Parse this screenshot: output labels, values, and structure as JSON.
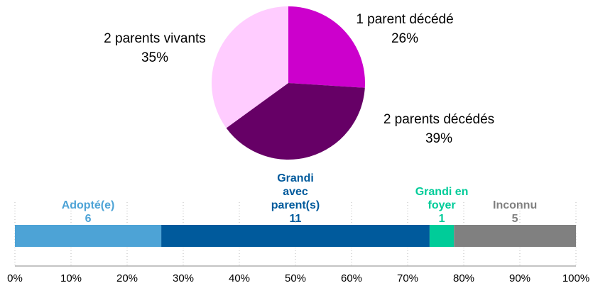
{
  "chart_data": [
    {
      "type": "pie",
      "categories": [
        "1 parent décédé",
        "2 parents décédés",
        "2 parents vivants"
      ],
      "values": [
        26,
        39,
        35
      ],
      "value_labels": [
        "26%",
        "39%",
        "35%"
      ],
      "colors": [
        "#cc00cc",
        "#660066",
        "#ffccff"
      ]
    },
    {
      "type": "stacked_bar_h",
      "series": [
        {
          "name": "Adopté(e)",
          "color": "#4da3d6",
          "values": [
            6
          ]
        },
        {
          "name": "Grandi avec parent(s)",
          "color": "#005a9c",
          "values": [
            11
          ]
        },
        {
          "name": "Grandi en foyer",
          "color": "#00cc99",
          "values": [
            1
          ]
        },
        {
          "name": "Inconnu",
          "color": "#808080",
          "values": [
            5
          ]
        }
      ],
      "xlim": [
        0,
        23
      ],
      "xticks": [
        {
          "value": 0,
          "label": "0%"
        },
        {
          "value": 2.3,
          "label": "10%"
        },
        {
          "value": 4.6,
          "label": "20%"
        },
        {
          "value": 6.9,
          "label": "30%"
        },
        {
          "value": 9.2,
          "label": "40%"
        },
        {
          "value": 11.5,
          "label": "50%"
        },
        {
          "value": 13.8,
          "label": "60%"
        },
        {
          "value": 16.1,
          "label": "70%"
        },
        {
          "value": 18.4,
          "label": "80%"
        },
        {
          "value": 20.7,
          "label": "90%"
        },
        {
          "value": 23,
          "label": "100%"
        }
      ],
      "grid": true
    }
  ]
}
